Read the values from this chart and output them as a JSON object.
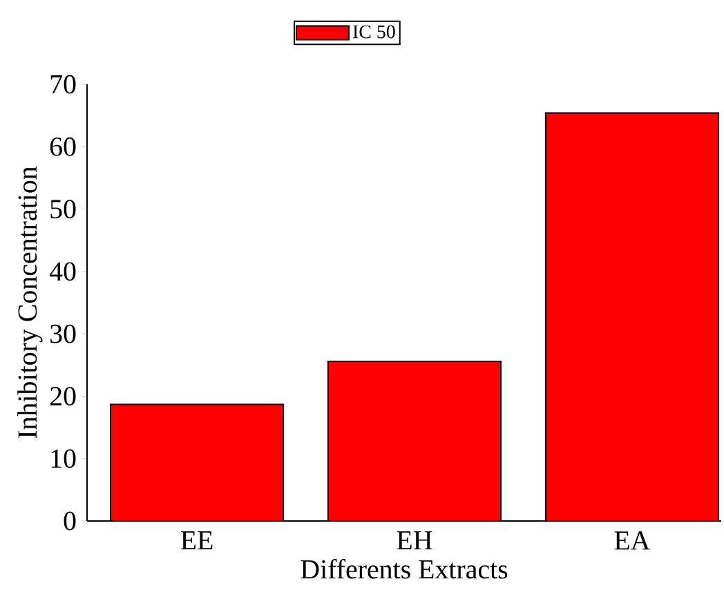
{
  "chart_data": {
    "type": "bar",
    "xlabel": "Differents Extracts",
    "ylabel": "Inhibitory Concentration",
    "categories": [
      "EE",
      "EH",
      "EA"
    ],
    "series": [
      {
        "name": "IC 50",
        "color": "#ff0000",
        "values": [
          18.7,
          25.6,
          65.4
        ]
      }
    ],
    "ylim": [
      0,
      70
    ],
    "yticks": [
      0,
      10,
      20,
      30,
      40,
      50,
      60,
      70
    ],
    "legend": "top"
  }
}
